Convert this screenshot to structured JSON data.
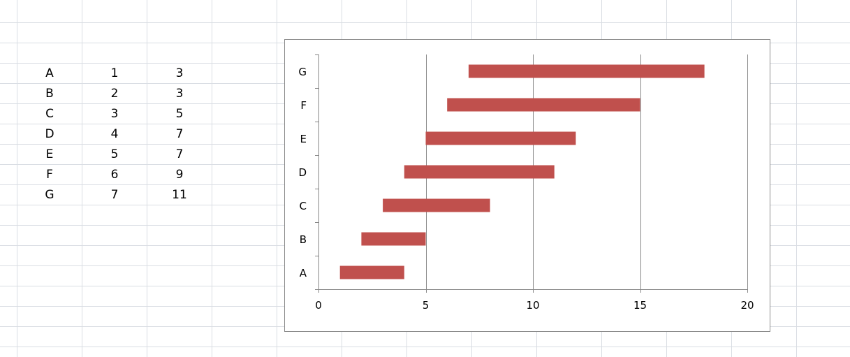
{
  "colors": {
    "bar": "#c0504d",
    "sheet_grid": "#d9dde3",
    "chart_grid": "#868686",
    "chart_border": "#8c8c8c"
  },
  "sheet": {
    "rows": [
      [
        "A",
        "1",
        "3"
      ],
      [
        "B",
        "2",
        "3"
      ],
      [
        "C",
        "3",
        "5"
      ],
      [
        "D",
        "4",
        "7"
      ],
      [
        "E",
        "5",
        "7"
      ],
      [
        "F",
        "6",
        "9"
      ],
      [
        "G",
        "7",
        "11"
      ]
    ]
  },
  "chart_data": {
    "type": "bar",
    "orientation": "horizontal",
    "stacked": true,
    "categories": [
      "A",
      "B",
      "C",
      "D",
      "E",
      "F",
      "G"
    ],
    "series": [
      {
        "values": [
          1,
          2,
          3,
          4,
          5,
          6,
          7
        ],
        "visible": false
      },
      {
        "values": [
          3,
          3,
          5,
          7,
          7,
          9,
          11
        ],
        "color": "#c0504d"
      }
    ],
    "x_ticks": [
      "0",
      "5",
      "10",
      "15",
      "20"
    ],
    "xlim": [
      0,
      20
    ],
    "grid": "vertical major gridlines",
    "legend": "none",
    "title": "",
    "xlabel": "",
    "ylabel": ""
  }
}
